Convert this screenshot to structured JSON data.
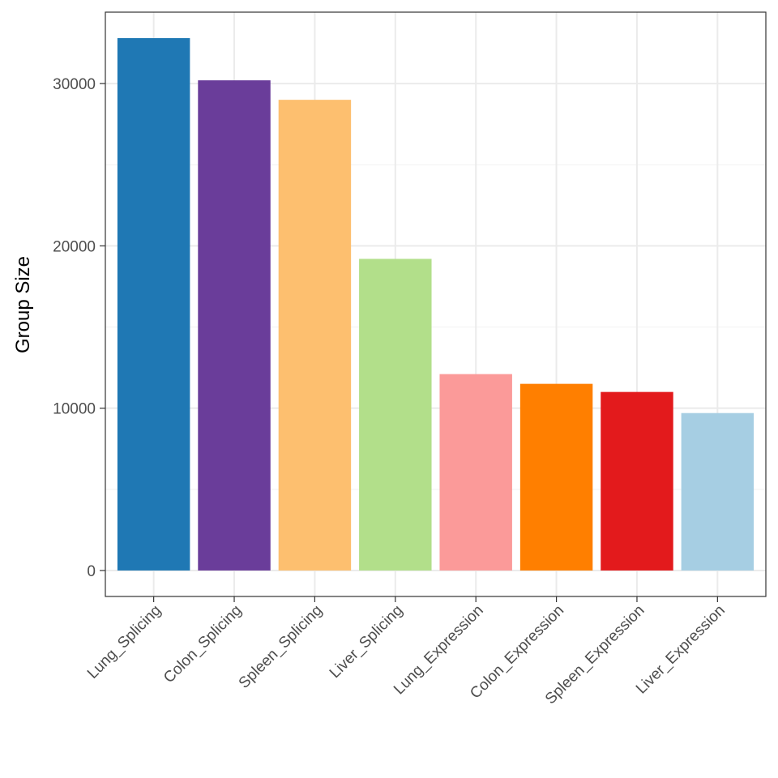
{
  "chart_data": {
    "type": "bar",
    "title": "",
    "xlabel": "",
    "ylabel": "Group Size",
    "categories": [
      "Lung_Splicing",
      "Colon_Splicing",
      "Spleen_Splicing",
      "Liver_Splicing",
      "Lung_Expression",
      "Colon_Expression",
      "Spleen_Expression",
      "Liver_Expression"
    ],
    "values": [
      32800,
      30200,
      29000,
      19200,
      12100,
      11500,
      11000,
      9700
    ],
    "colors": [
      "#1f78b4",
      "#6a3d9a",
      "#fdbf6f",
      "#b2df8a",
      "#fb9a99",
      "#ff7f00",
      "#e31a1c",
      "#a6cee3"
    ],
    "ylim": [
      -1600,
      34400
    ],
    "yticks": [
      0,
      10000,
      20000,
      30000
    ],
    "grid": true,
    "theme": "bw"
  }
}
